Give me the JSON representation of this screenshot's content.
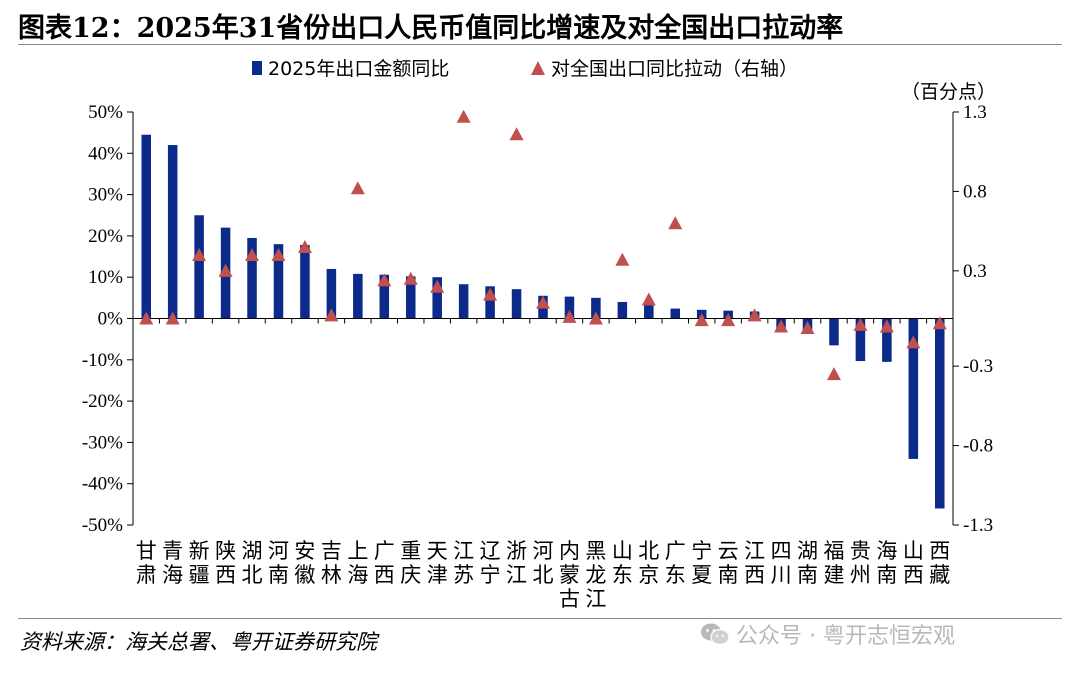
{
  "title": "图表12：2025年31省份出口人民币值同比增速及对全国出口拉动率",
  "source": "资料来源：海关总署、粤开证券研究院",
  "watermark": "公众号 · 粤开志恒宏观",
  "watermark_icon": "wechat-icon",
  "colors": {
    "bar": "#0b2a8a",
    "marker": "#c0504d",
    "axis": "#000000"
  },
  "chart_data": {
    "type": "bar+scatter",
    "right_axis_unit": "（百分点）",
    "categories": [
      [
        "甘",
        "肃"
      ],
      [
        "青",
        "海"
      ],
      [
        "新",
        "疆"
      ],
      [
        "陕",
        "西"
      ],
      [
        "湖",
        "北"
      ],
      [
        "河",
        "南"
      ],
      [
        "安",
        "徽"
      ],
      [
        "吉",
        "林"
      ],
      [
        "上",
        "海"
      ],
      [
        "广",
        "西"
      ],
      [
        "重",
        "庆"
      ],
      [
        "天",
        "津"
      ],
      [
        "江",
        "苏"
      ],
      [
        "辽",
        "宁"
      ],
      [
        "浙",
        "江"
      ],
      [
        "河",
        "北"
      ],
      [
        "内",
        "蒙",
        "古"
      ],
      [
        "黑",
        "龙",
        "江"
      ],
      [
        "山",
        "东"
      ],
      [
        "北",
        "京"
      ],
      [
        "广",
        "东"
      ],
      [
        "宁",
        "夏"
      ],
      [
        "云",
        "南"
      ],
      [
        "江",
        "西"
      ],
      [
        "四",
        "川"
      ],
      [
        "湖",
        "南"
      ],
      [
        "福",
        "建"
      ],
      [
        "贵",
        "州"
      ],
      [
        "海",
        "南"
      ],
      [
        "山",
        "西"
      ],
      [
        "西",
        "藏"
      ]
    ],
    "series": [
      {
        "name": "2025年出口金额同比",
        "kind": "bar",
        "axis": "left",
        "values": [
          44.5,
          42,
          25,
          22,
          19.5,
          18,
          17.8,
          12,
          10.8,
          10.6,
          10.2,
          10,
          8.3,
          7.8,
          7.1,
          5.5,
          5.3,
          5,
          4,
          3.3,
          2.4,
          2.1,
          1.9,
          1.7,
          -2.5,
          -3,
          -6.5,
          -10.3,
          -10.5,
          -34,
          -46
        ]
      },
      {
        "name": "对全国出口同比拉动（右轴）",
        "kind": "marker",
        "axis": "right",
        "values": [
          0,
          0,
          0.4,
          0.3,
          0.4,
          0.4,
          0.45,
          0.02,
          0.82,
          0.24,
          0.25,
          0.2,
          1.27,
          0.15,
          1.16,
          0.1,
          0.01,
          0,
          0.37,
          0.12,
          0.6,
          -0.01,
          -0.01,
          0.02,
          -0.05,
          -0.06,
          -0.35,
          -0.04,
          -0.05,
          -0.15,
          -0.03
        ]
      }
    ],
    "left_axis": {
      "min": -50,
      "max": 50,
      "ticks": [
        "50%",
        "40%",
        "30%",
        "20%",
        "10%",
        "0%",
        "-10%",
        "-20%",
        "-30%",
        "-40%",
        "-50%"
      ]
    },
    "right_axis": {
      "min": -1.3,
      "max": 1.3,
      "ticks": [
        "1.3",
        "0.8",
        "0.3",
        "-0.3",
        "-0.8",
        "-1.3"
      ]
    }
  }
}
